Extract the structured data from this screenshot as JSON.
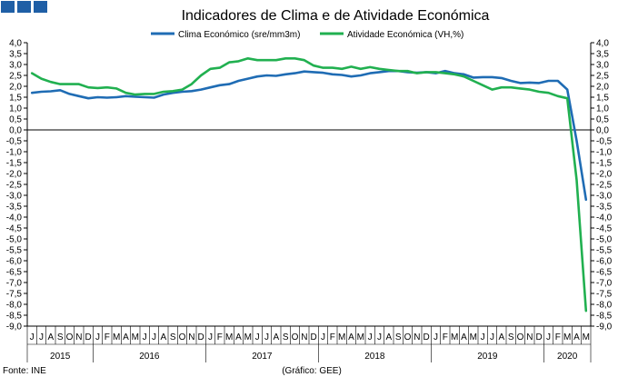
{
  "chart_data": {
    "type": "line",
    "title": "Indicadores de Clima e de Atividade Económica",
    "ylim": [
      -9,
      4
    ],
    "y_ticks": [
      4,
      3.5,
      3,
      2.5,
      2,
      1.5,
      1,
      0.5,
      0,
      -0.5,
      -1,
      -1.5,
      -2,
      -2.5,
      -3,
      -3.5,
      -4,
      -4.5,
      -5,
      -5.5,
      -6,
      -6.5,
      -7,
      -7.5,
      -8,
      -8.5,
      -9
    ],
    "y_tick_labels": [
      "4,0",
      "3,5",
      "3,0",
      "2,5",
      "2,0",
      "1,5",
      "1,0",
      "0,5",
      "0,0",
      "-0,5",
      "-1,0",
      "-1,5",
      "-2,0",
      "-2,5",
      "-3,0",
      "-3,5",
      "-4,0",
      "-4,5",
      "-5,0",
      "-5,5",
      "-6,0",
      "-6,5",
      "-7,0",
      "-7,5",
      "-8,0",
      "-8,5",
      "-9,0"
    ],
    "x_month_labels": [
      "J",
      "J",
      "A",
      "S",
      "O",
      "N",
      "D",
      "J",
      "F",
      "M",
      "A",
      "M",
      "J",
      "J",
      "A",
      "S",
      "O",
      "N",
      "D",
      "J",
      "F",
      "M",
      "A",
      "M",
      "J",
      "J",
      "A",
      "S",
      "O",
      "N",
      "D",
      "J",
      "F",
      "M",
      "A",
      "M",
      "J",
      "J",
      "A",
      "S",
      "O",
      "N",
      "D",
      "J",
      "F",
      "M",
      "A",
      "M",
      "J",
      "J",
      "A",
      "S",
      "O",
      "N",
      "D",
      "J",
      "F",
      "M",
      "A",
      "M"
    ],
    "years": [
      "2015",
      "2016",
      "2017",
      "2018",
      "2019",
      "2020"
    ],
    "grid": false,
    "legend_position": "top-center",
    "series": [
      {
        "name": "Clima Económico (sre/mm3m)",
        "color": "#1f6cb4",
        "values": [
          1.7,
          1.75,
          1.77,
          1.82,
          1.65,
          1.55,
          1.45,
          1.5,
          1.48,
          1.5,
          1.55,
          1.52,
          1.5,
          1.48,
          1.62,
          1.7,
          1.75,
          1.78,
          1.85,
          1.95,
          2.05,
          2.1,
          2.25,
          2.35,
          2.45,
          2.5,
          2.48,
          2.55,
          2.6,
          2.68,
          2.65,
          2.62,
          2.55,
          2.52,
          2.45,
          2.5,
          2.6,
          2.65,
          2.7,
          2.7,
          2.65,
          2.62,
          2.65,
          2.6,
          2.7,
          2.6,
          2.55,
          2.4,
          2.42,
          2.42,
          2.38,
          2.25,
          2.15,
          2.17,
          2.15,
          2.25,
          2.25,
          1.85,
          -0.5,
          -3.2
        ]
      },
      {
        "name": "Atividade Económica (VH,%)",
        "color": "#21b050",
        "values": [
          2.6,
          2.35,
          2.2,
          2.1,
          2.1,
          2.1,
          1.95,
          1.92,
          1.95,
          1.9,
          1.7,
          1.62,
          1.65,
          1.65,
          1.75,
          1.78,
          1.85,
          2.1,
          2.5,
          2.8,
          2.85,
          3.1,
          3.15,
          3.28,
          3.2,
          3.2,
          3.2,
          3.28,
          3.28,
          3.2,
          2.95,
          2.85,
          2.85,
          2.8,
          2.9,
          2.8,
          2.88,
          2.8,
          2.75,
          2.7,
          2.7,
          2.6,
          2.65,
          2.65,
          2.6,
          2.55,
          2.45,
          2.25,
          2.05,
          1.85,
          1.95,
          1.95,
          1.9,
          1.85,
          1.75,
          1.7,
          1.55,
          1.45,
          -2.3,
          -8.3
        ]
      }
    ]
  },
  "footer": {
    "source": "Fonte: INE",
    "credit": "(Gráfico: GEE)"
  },
  "colors": {
    "corner_squares": "#1f5fa6",
    "clima": "#1f6cb4",
    "atividade": "#21b050"
  }
}
